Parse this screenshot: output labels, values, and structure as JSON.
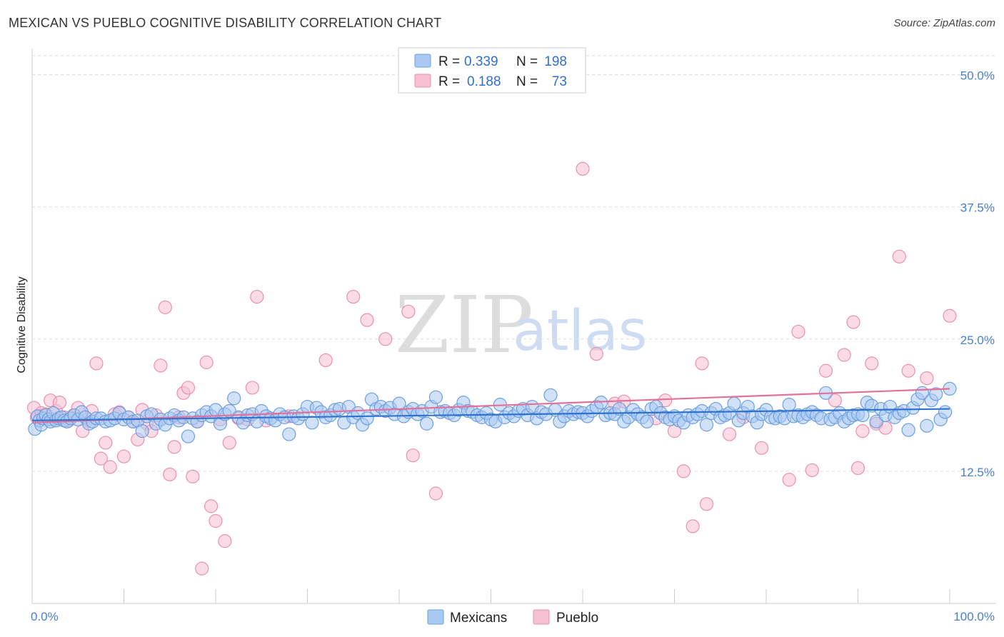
{
  "title": "MEXICAN VS PUEBLO COGNITIVE DISABILITY CORRELATION CHART",
  "source": "Source: ZipAtlas.com",
  "watermark": {
    "zip": "ZIP",
    "atlas": "atlas"
  },
  "colors": {
    "mexicans_fill": "#a9c9f2",
    "mexicans_stroke": "#6c9fe0",
    "mexicans_line": "#2f73cf",
    "pueblo_fill": "#f7bfd2",
    "pueblo_stroke": "#ea90ae",
    "pueblo_line": "#e3719a",
    "grid": "#dddddd",
    "axis_text": "#4a7fcf"
  },
  "legend": {
    "row1": {
      "r_label": "R =",
      "r_value": "0.339",
      "n_label": "N =",
      "n_value": "198"
    },
    "row2": {
      "r_label": "R =",
      "r_value": "0.188",
      "n_label": "N =",
      "n_value": "73"
    }
  },
  "chart_data": {
    "type": "scatter",
    "title": "MEXICAN VS PUEBLO COGNITIVE DISABILITY CORRELATION CHART",
    "xlabel": "",
    "ylabel": "Cognitive Disability",
    "xlim": [
      0,
      100
    ],
    "ylim": [
      0,
      52
    ],
    "x_tick_labels": [
      "0.0%",
      "100.0%"
    ],
    "y_ticks": [
      12.5,
      25.0,
      37.5,
      50.0
    ],
    "y_tick_labels": [
      "12.5%",
      "25.0%",
      "37.5%",
      "50.0%"
    ],
    "grid": true,
    "legend_position": "top-center",
    "series": [
      {
        "name": "Mexicans",
        "R": 0.339,
        "N": 198,
        "trend": [
          [
            0,
            17.3
          ],
          [
            100,
            18.4
          ]
        ],
        "points": [
          [
            0.3,
            16.5
          ],
          [
            0.6,
            17.7
          ],
          [
            0.8,
            17.3
          ],
          [
            1.0,
            16.9
          ],
          [
            1.2,
            17.5
          ],
          [
            1.5,
            17.8
          ],
          [
            1.8,
            17.4
          ],
          [
            2.0,
            17.2
          ],
          [
            2.3,
            18.0
          ],
          [
            2.6,
            17.3
          ],
          [
            2.9,
            17.5
          ],
          [
            3.2,
            17.6
          ],
          [
            3.5,
            17.3
          ],
          [
            3.8,
            17.2
          ],
          [
            4.2,
            17.5
          ],
          [
            4.6,
            17.8
          ],
          [
            5.0,
            17.4
          ],
          [
            5.4,
            18.1
          ],
          [
            5.8,
            17.6
          ],
          [
            6.2,
            17.0
          ],
          [
            6.6,
            17.2
          ],
          [
            7.0,
            17.5
          ],
          [
            7.5,
            17.5
          ],
          [
            8.0,
            17.2
          ],
          [
            8.5,
            17.3
          ],
          [
            9.0,
            17.5
          ],
          [
            9.5,
            18.0
          ],
          [
            10.0,
            17.4
          ],
          [
            10.5,
            17.6
          ],
          [
            11.0,
            17.2
          ],
          [
            11.5,
            17.3
          ],
          [
            12.0,
            16.3
          ],
          [
            12.5,
            17.7
          ],
          [
            13.0,
            17.9
          ],
          [
            13.5,
            17.0
          ],
          [
            14.0,
            17.4
          ],
          [
            14.5,
            16.9
          ],
          [
            15.0,
            17.5
          ],
          [
            15.5,
            17.8
          ],
          [
            16.0,
            17.3
          ],
          [
            16.5,
            17.6
          ],
          [
            17.0,
            15.8
          ],
          [
            17.5,
            17.5
          ],
          [
            18.0,
            17.2
          ],
          [
            18.5,
            17.8
          ],
          [
            19.0,
            18.1
          ],
          [
            19.5,
            17.7
          ],
          [
            20.0,
            18.3
          ],
          [
            20.5,
            17.0
          ],
          [
            21.0,
            17.9
          ],
          [
            21.5,
            18.2
          ],
          [
            22.0,
            19.4
          ],
          [
            22.5,
            17.6
          ],
          [
            23.0,
            17.1
          ],
          [
            23.5,
            17.8
          ],
          [
            24.0,
            17.9
          ],
          [
            24.5,
            17.2
          ],
          [
            25.0,
            18.2
          ],
          [
            25.5,
            17.7
          ],
          [
            26.0,
            17.5
          ],
          [
            26.5,
            17.3
          ],
          [
            27.0,
            17.9
          ],
          [
            27.5,
            17.6
          ],
          [
            28.0,
            16.0
          ],
          [
            28.5,
            17.7
          ],
          [
            29.0,
            17.5
          ],
          [
            29.5,
            17.9
          ],
          [
            30.0,
            18.6
          ],
          [
            30.5,
            17.1
          ],
          [
            31.0,
            18.5
          ],
          [
            31.5,
            18.1
          ],
          [
            32.0,
            17.6
          ],
          [
            32.5,
            17.8
          ],
          [
            33.0,
            18.3
          ],
          [
            33.5,
            18.4
          ],
          [
            34.0,
            17.1
          ],
          [
            34.5,
            18.6
          ],
          [
            35.0,
            17.6
          ],
          [
            35.5,
            18.0
          ],
          [
            36.0,
            16.9
          ],
          [
            36.5,
            17.5
          ],
          [
            37.0,
            19.3
          ],
          [
            37.5,
            18.4
          ],
          [
            38.0,
            18.6
          ],
          [
            38.5,
            18.2
          ],
          [
            39.0,
            18.5
          ],
          [
            39.5,
            17.9
          ],
          [
            40.0,
            18.9
          ],
          [
            40.5,
            17.7
          ],
          [
            41.0,
            18.1
          ],
          [
            41.5,
            18.4
          ],
          [
            42.0,
            17.9
          ],
          [
            42.5,
            18.2
          ],
          [
            43.0,
            17.0
          ],
          [
            43.5,
            18.6
          ],
          [
            44.0,
            19.5
          ],
          [
            44.5,
            18.1
          ],
          [
            45.0,
            18.2
          ],
          [
            45.5,
            18.0
          ],
          [
            46.0,
            17.8
          ],
          [
            46.5,
            18.3
          ],
          [
            47.0,
            19.0
          ],
          [
            47.5,
            18.2
          ],
          [
            48.0,
            18.1
          ],
          [
            48.5,
            17.8
          ],
          [
            49.0,
            17.6
          ],
          [
            49.5,
            18.0
          ],
          [
            50.0,
            17.4
          ],
          [
            50.5,
            17.2
          ],
          [
            51.0,
            18.8
          ],
          [
            51.5,
            17.6
          ],
          [
            52.0,
            18.0
          ],
          [
            52.5,
            17.7
          ],
          [
            53.0,
            18.2
          ],
          [
            53.5,
            18.4
          ],
          [
            54.0,
            17.8
          ],
          [
            54.5,
            18.6
          ],
          [
            55.0,
            17.5
          ],
          [
            55.5,
            18.1
          ],
          [
            56.0,
            17.9
          ],
          [
            56.5,
            19.7
          ],
          [
            57.0,
            18.3
          ],
          [
            57.5,
            17.2
          ],
          [
            58.0,
            17.7
          ],
          [
            58.5,
            18.2
          ],
          [
            59.0,
            17.9
          ],
          [
            59.5,
            18.1
          ],
          [
            60.0,
            18.0
          ],
          [
            60.5,
            17.7
          ],
          [
            61.0,
            18.2
          ],
          [
            61.5,
            18.6
          ],
          [
            62.0,
            19.0
          ],
          [
            62.5,
            17.8
          ],
          [
            63.0,
            18.0
          ],
          [
            63.5,
            17.9
          ],
          [
            64.0,
            18.4
          ],
          [
            64.5,
            17.2
          ],
          [
            65.0,
            17.6
          ],
          [
            65.5,
            18.3
          ],
          [
            66.0,
            17.9
          ],
          [
            66.5,
            17.6
          ],
          [
            67.0,
            17.2
          ],
          [
            67.5,
            18.4
          ],
          [
            68.0,
            18.6
          ],
          [
            68.5,
            18.0
          ],
          [
            69.0,
            17.6
          ],
          [
            69.5,
            17.4
          ],
          [
            70.0,
            17.7
          ],
          [
            70.5,
            17.3
          ],
          [
            71.0,
            17.1
          ],
          [
            71.5,
            17.8
          ],
          [
            72.0,
            17.6
          ],
          [
            72.5,
            17.9
          ],
          [
            73.0,
            18.2
          ],
          [
            73.5,
            16.9
          ],
          [
            74.0,
            18.0
          ],
          [
            74.5,
            18.4
          ],
          [
            75.0,
            17.6
          ],
          [
            75.5,
            17.8
          ],
          [
            76.0,
            18.0
          ],
          [
            76.5,
            18.9
          ],
          [
            77.0,
            17.3
          ],
          [
            77.5,
            18.0
          ],
          [
            78.0,
            18.6
          ],
          [
            78.5,
            17.7
          ],
          [
            79.0,
            17.1
          ],
          [
            79.5,
            17.9
          ],
          [
            80.0,
            18.3
          ],
          [
            80.5,
            17.6
          ],
          [
            81.0,
            17.5
          ],
          [
            81.5,
            17.7
          ],
          [
            82.0,
            17.5
          ],
          [
            82.5,
            18.8
          ],
          [
            83.0,
            17.7
          ],
          [
            83.5,
            17.8
          ],
          [
            84.0,
            17.6
          ],
          [
            84.5,
            17.9
          ],
          [
            85.0,
            18.1
          ],
          [
            85.5,
            17.8
          ],
          [
            86.0,
            17.5
          ],
          [
            86.5,
            19.9
          ],
          [
            87.0,
            17.4
          ],
          [
            87.5,
            17.6
          ],
          [
            88.0,
            18.0
          ],
          [
            88.5,
            17.2
          ],
          [
            89.0,
            17.5
          ],
          [
            89.5,
            17.8
          ],
          [
            90.0,
            17.9
          ],
          [
            90.5,
            17.8
          ],
          [
            91.0,
            19.0
          ],
          [
            91.5,
            18.7
          ],
          [
            92.0,
            17.2
          ],
          [
            92.5,
            18.4
          ],
          [
            93.0,
            17.8
          ],
          [
            93.5,
            18.6
          ],
          [
            94.0,
            17.6
          ],
          [
            94.5,
            18.0
          ],
          [
            95.0,
            18.2
          ],
          [
            95.5,
            16.4
          ],
          [
            96.0,
            18.5
          ],
          [
            96.5,
            19.3
          ],
          [
            97.0,
            19.9
          ],
          [
            97.5,
            16.8
          ],
          [
            98.0,
            19.2
          ],
          [
            98.5,
            19.8
          ],
          [
            99.0,
            17.4
          ],
          [
            99.5,
            18.1
          ],
          [
            100.0,
            20.3
          ]
        ]
      },
      {
        "name": "Pueblo",
        "R": 0.188,
        "N": 73,
        "trend": [
          [
            0,
            17.1
          ],
          [
            100,
            20.3
          ]
        ],
        "points": [
          [
            0.2,
            18.5
          ],
          [
            0.5,
            17.6
          ],
          [
            1.0,
            18.0
          ],
          [
            1.5,
            17.9
          ],
          [
            2.0,
            19.2
          ],
          [
            2.3,
            17.4
          ],
          [
            2.6,
            18.2
          ],
          [
            3.0,
            19.0
          ],
          [
            3.5,
            17.6
          ],
          [
            4.0,
            17.3
          ],
          [
            4.5,
            17.8
          ],
          [
            5.0,
            18.5
          ],
          [
            5.5,
            16.3
          ],
          [
            6.0,
            17.4
          ],
          [
            6.5,
            18.2
          ],
          [
            7.0,
            22.7
          ],
          [
            7.5,
            13.7
          ],
          [
            8.0,
            15.2
          ],
          [
            8.5,
            12.9
          ],
          [
            9.0,
            17.9
          ],
          [
            9.5,
            18.1
          ],
          [
            10.0,
            13.9
          ],
          [
            10.5,
            17.6
          ],
          [
            11.0,
            17.2
          ],
          [
            11.5,
            15.5
          ],
          [
            12.0,
            18.3
          ],
          [
            12.5,
            17.0
          ],
          [
            13.0,
            16.3
          ],
          [
            13.5,
            17.8
          ],
          [
            14.0,
            22.5
          ],
          [
            14.5,
            28.0
          ],
          [
            15.0,
            12.2
          ],
          [
            15.5,
            14.8
          ],
          [
            16.0,
            17.6
          ],
          [
            16.5,
            19.9
          ],
          [
            17.0,
            20.4
          ],
          [
            17.5,
            12.0
          ],
          [
            18.0,
            17.2
          ],
          [
            18.5,
            3.3
          ],
          [
            19.0,
            22.8
          ],
          [
            19.5,
            9.2
          ],
          [
            20.0,
            7.8
          ],
          [
            20.5,
            17.4
          ],
          [
            21.0,
            5.9
          ],
          [
            21.5,
            15.2
          ],
          [
            22.5,
            17.5
          ],
          [
            23.5,
            17.4
          ],
          [
            24.0,
            20.4
          ],
          [
            24.5,
            29.0
          ],
          [
            25.5,
            17.3
          ],
          [
            28.0,
            17.7
          ],
          [
            32.0,
            23.0
          ],
          [
            35.0,
            29.0
          ],
          [
            36.5,
            26.8
          ],
          [
            38.5,
            25.0
          ],
          [
            41.0,
            27.6
          ],
          [
            41.5,
            14.0
          ],
          [
            44.0,
            10.4
          ],
          [
            60.0,
            41.1
          ],
          [
            61.5,
            23.6
          ],
          [
            63.5,
            18.9
          ],
          [
            64.5,
            19.1
          ],
          [
            68.0,
            17.5
          ],
          [
            69.0,
            19.2
          ],
          [
            70.0,
            16.3
          ],
          [
            71.0,
            12.5
          ],
          [
            72.0,
            7.3
          ],
          [
            73.0,
            22.7
          ],
          [
            73.5,
            9.4
          ],
          [
            76.0,
            16.0
          ],
          [
            77.5,
            17.6
          ],
          [
            79.5,
            14.7
          ],
          [
            82.5,
            11.7
          ],
          [
            83.5,
            25.7
          ],
          [
            85.0,
            12.6
          ],
          [
            86.5,
            22.0
          ],
          [
            87.5,
            19.2
          ],
          [
            88.5,
            23.5
          ],
          [
            89.5,
            26.6
          ],
          [
            90.0,
            12.8
          ],
          [
            90.5,
            16.3
          ],
          [
            91.5,
            22.7
          ],
          [
            92.0,
            17.0
          ],
          [
            93.0,
            16.6
          ],
          [
            94.5,
            32.8
          ],
          [
            95.5,
            22.0
          ],
          [
            97.5,
            21.3
          ],
          [
            100.0,
            27.2
          ]
        ]
      }
    ]
  }
}
